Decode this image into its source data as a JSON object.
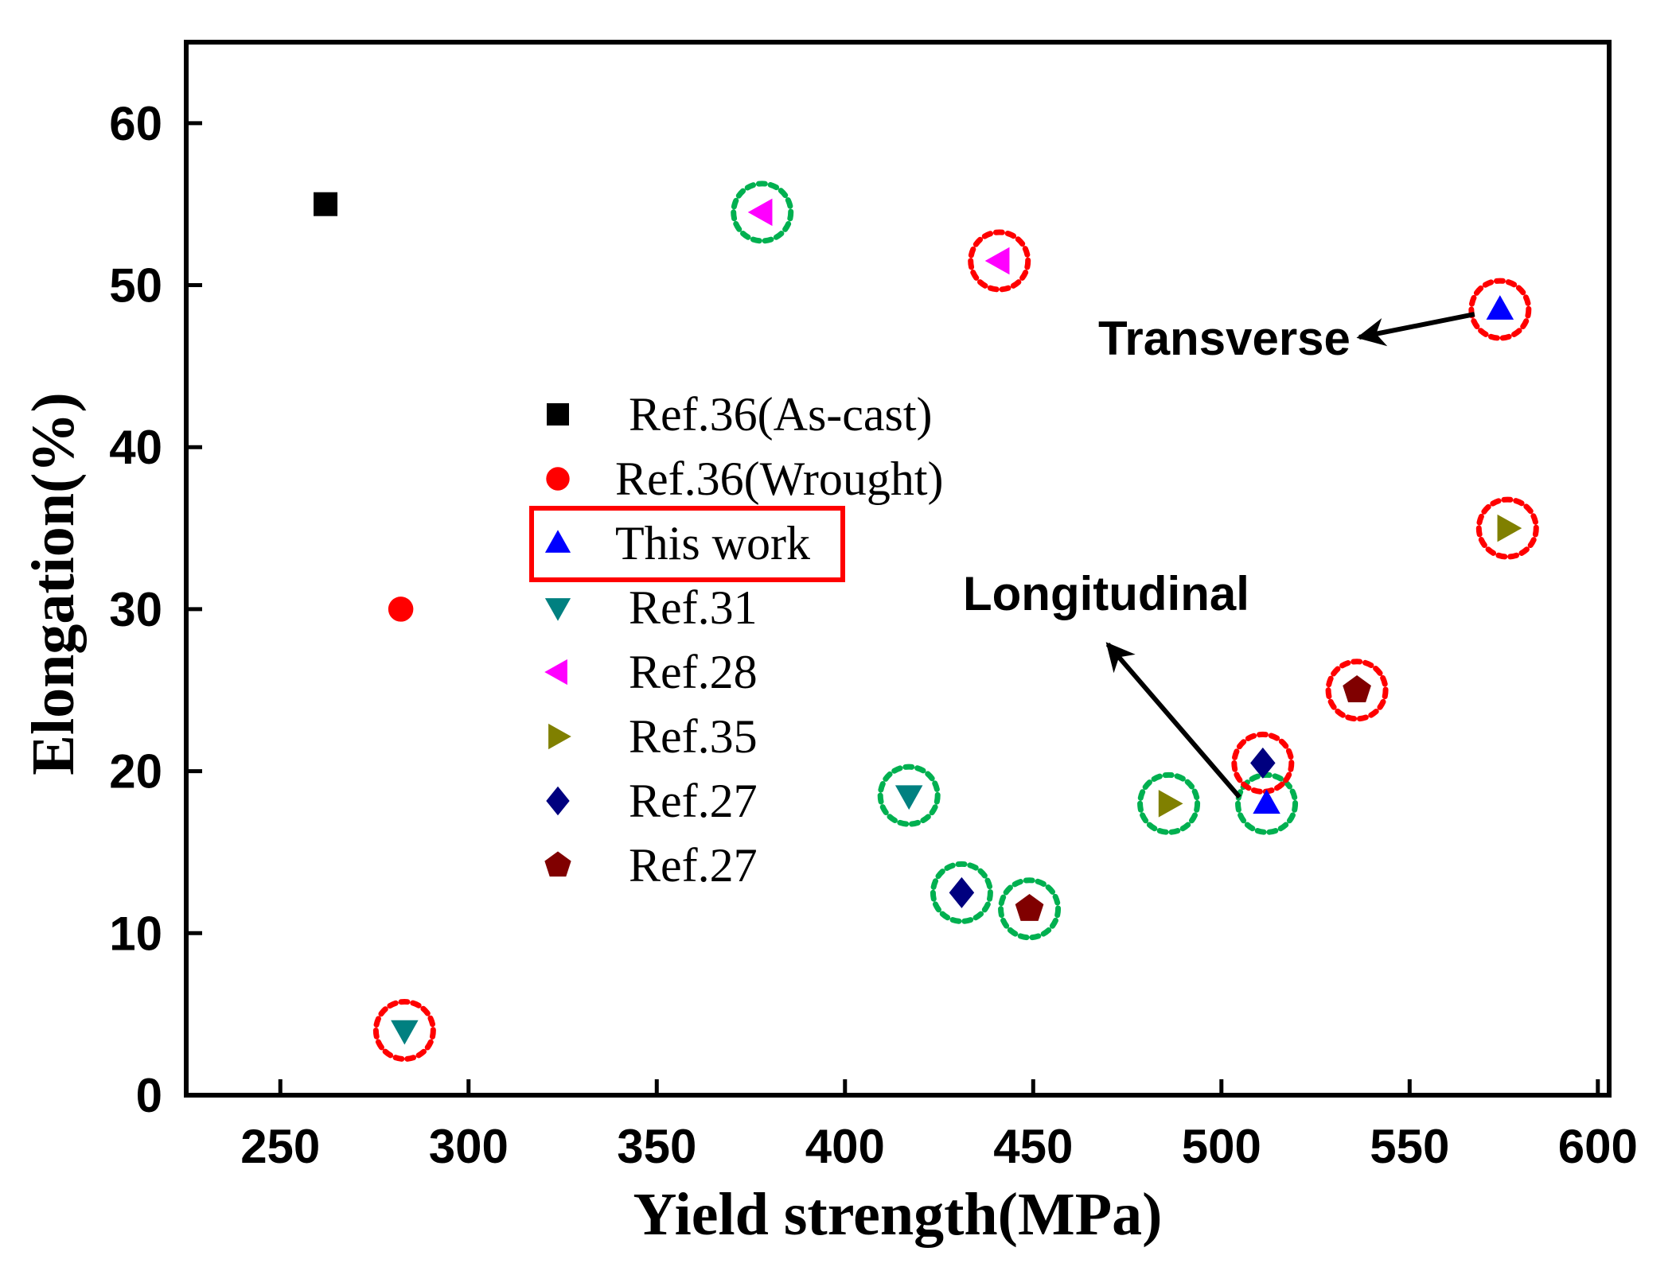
{
  "chart_data": {
    "type": "scatter",
    "title": "",
    "xlabel": "Yield strength(MPa)",
    "ylabel": "Elongation(%)",
    "xlim": [
      225,
      603
    ],
    "ylim": [
      0,
      65
    ],
    "xticks": [
      250,
      300,
      350,
      400,
      450,
      500,
      550,
      600
    ],
    "yticks": [
      0,
      10,
      20,
      30,
      40,
      50,
      60
    ],
    "grid": false,
    "legend_position": "center-left",
    "series": [
      {
        "name": "Ref.36(As-cast)",
        "marker": "square",
        "color": "#000000",
        "points": [
          {
            "x": 262,
            "y": 55,
            "circle": "none"
          }
        ]
      },
      {
        "name": "Ref.36(Wrought)",
        "marker": "circle",
        "color": "#ff0000",
        "points": [
          {
            "x": 282,
            "y": 30,
            "circle": "none"
          }
        ]
      },
      {
        "name": "This work",
        "marker": "triangle-up",
        "color": "#0000ff",
        "highlighted": true,
        "points": [
          {
            "x": 574,
            "y": 48.5,
            "circle": "red"
          },
          {
            "x": 512,
            "y": 18,
            "circle": "green"
          }
        ]
      },
      {
        "name": "Ref.31",
        "marker": "triangle-down",
        "color": "#008080",
        "points": [
          {
            "x": 283,
            "y": 4,
            "circle": "red"
          },
          {
            "x": 417,
            "y": 18.5,
            "circle": "green"
          }
        ]
      },
      {
        "name": "Ref.28",
        "marker": "triangle-left",
        "color": "#ff00ff",
        "points": [
          {
            "x": 378,
            "y": 54.5,
            "circle": "green"
          },
          {
            "x": 441,
            "y": 51.5,
            "circle": "red"
          }
        ]
      },
      {
        "name": "Ref.35",
        "marker": "triangle-right",
        "color": "#808000",
        "points": [
          {
            "x": 576,
            "y": 35,
            "circle": "red"
          },
          {
            "x": 486,
            "y": 18,
            "circle": "green"
          }
        ]
      },
      {
        "name": "Ref.27",
        "marker": "diamond",
        "color": "#00007f",
        "points": [
          {
            "x": 431,
            "y": 12.5,
            "circle": "green"
          },
          {
            "x": 511,
            "y": 20.5,
            "circle": "red"
          }
        ]
      },
      {
        "name": "Ref.27",
        "marker": "pentagon",
        "color": "#800000",
        "points": [
          {
            "x": 449,
            "y": 11.5,
            "circle": "green"
          },
          {
            "x": 536,
            "y": 25,
            "circle": "red"
          }
        ]
      }
    ],
    "annotations": [
      {
        "text": "Transverse",
        "arrow_to": {
          "x": 574,
          "y": 48.5
        }
      },
      {
        "text": "Longitudinal",
        "arrow_from": {
          "x": 512,
          "y": 18
        }
      }
    ],
    "circle_colors": {
      "red": "#ff0000",
      "green": "#00b050"
    },
    "highlight_box_color": "#ff0000"
  }
}
